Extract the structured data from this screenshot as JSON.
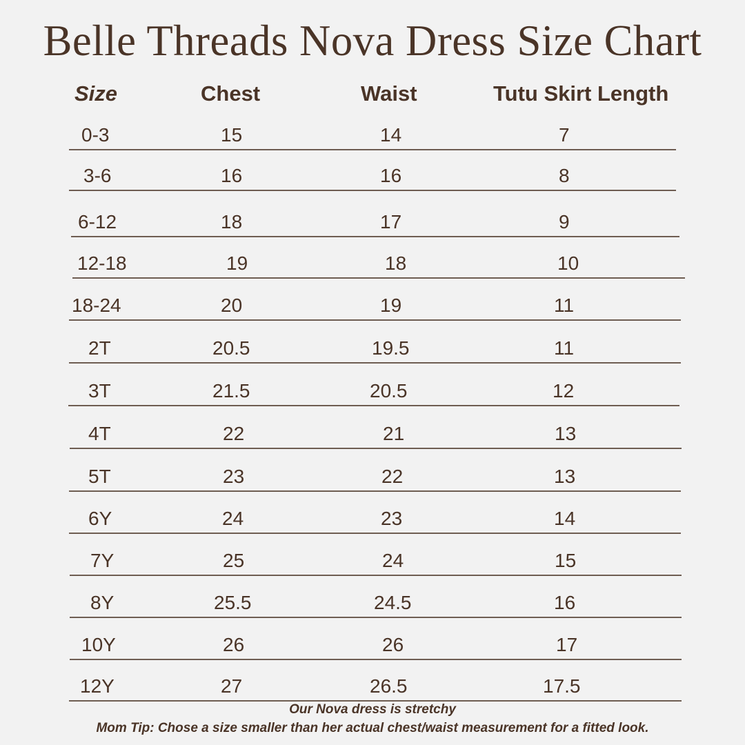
{
  "title": "Belle Threads Nova Dress Size Chart",
  "table": {
    "headers": [
      "Size",
      "Chest",
      "Waist",
      "Tutu Skirt Length"
    ],
    "rows": [
      [
        "0-3",
        "15",
        "14",
        "7"
      ],
      [
        "3-6",
        "16",
        "16",
        "8"
      ],
      [
        "6-12",
        "18",
        "17",
        "9"
      ],
      [
        "12-18",
        "19",
        "18",
        "10"
      ],
      [
        "18-24",
        "20",
        "19",
        "11"
      ],
      [
        "2T",
        "20.5",
        "19.5",
        "11"
      ],
      [
        "3T",
        "21.5",
        "20.5",
        "12"
      ],
      [
        "4T",
        "22",
        "21",
        "13"
      ],
      [
        "5T",
        "23",
        "22",
        "13"
      ],
      [
        "6Y",
        "24",
        "23",
        "14"
      ],
      [
        "7Y",
        "25",
        "24",
        "15"
      ],
      [
        "8Y",
        "25.5",
        "24.5",
        "16"
      ],
      [
        "10Y",
        "26",
        "26",
        "17"
      ],
      [
        "12Y",
        "27",
        "26.5",
        "17.5"
      ]
    ]
  },
  "notes": {
    "stretchy": "Our Nova dress is stretchy",
    "mom_tip": "Mom Tip: Chose a size smaller than her actual chest/waist measurement for a fitted look."
  },
  "colors": {
    "text": "#4a3427",
    "background": "#f2f2f2",
    "rule": "#6e5d52"
  }
}
